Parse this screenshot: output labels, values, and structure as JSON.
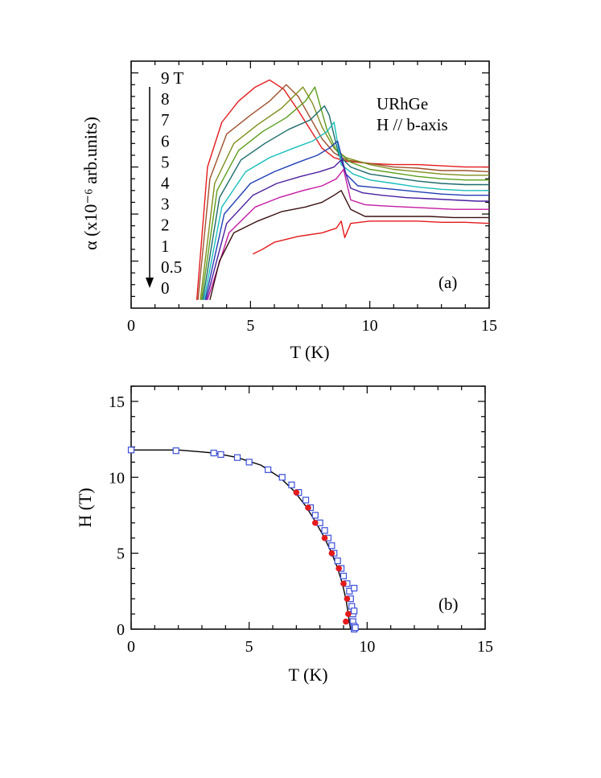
{
  "chart_data": [
    {
      "type": "line",
      "panel_label": "(a)",
      "xlabel": "T (K)",
      "ylabel": "α (x10⁻⁶ arb.units)",
      "xlim": [
        0,
        15
      ],
      "xticks": [
        "0",
        "5",
        "10",
        "15"
      ],
      "y_tick_labels_shown": false,
      "annotations": [
        "URhGe",
        "H // b-axis"
      ],
      "field_labels": [
        "9 T",
        "8",
        "7",
        "6",
        "5",
        "4",
        "3",
        "2",
        "1",
        "0.5",
        "0"
      ],
      "series": [
        {
          "field": 9,
          "color": "#e41a1c",
          "x": [
            2.75,
            3.2,
            3.8,
            4.5,
            5.2,
            5.8,
            6.4,
            7.0,
            7.5,
            8.0,
            8.5,
            9.0,
            10.0,
            11.0,
            12.0,
            13.0,
            14.0,
            15.0
          ],
          "y": [
            0.35,
            6.0,
            7.9,
            8.8,
            9.4,
            9.7,
            9.3,
            8.4,
            7.6,
            6.8,
            6.4,
            6.25,
            6.15,
            6.1,
            6.1,
            6.05,
            6.0,
            6.0
          ]
        },
        {
          "field": 8,
          "color": "#a0522d",
          "x": [
            2.8,
            3.3,
            4.0,
            5.0,
            5.8,
            6.5,
            7.0,
            7.5,
            8.0,
            8.5,
            9.0,
            10.0,
            11.0,
            12.0,
            13.0,
            14.0,
            15.0
          ],
          "y": [
            0.35,
            5.5,
            7.4,
            8.2,
            8.8,
            9.5,
            9.0,
            8.1,
            7.2,
            6.6,
            6.3,
            6.15,
            6.0,
            5.95,
            5.85,
            5.85,
            5.8
          ]
        },
        {
          "field": 7,
          "color": "#7f8c1a",
          "x": [
            2.9,
            3.5,
            4.3,
            5.3,
            6.3,
            7.2,
            7.6,
            8.0,
            8.5,
            9.0,
            10.0,
            11.0,
            12.0,
            13.0,
            14.0,
            15.0
          ],
          "y": [
            0.35,
            5.3,
            7.0,
            7.8,
            8.5,
            9.4,
            8.7,
            7.7,
            6.8,
            6.4,
            6.1,
            5.9,
            5.8,
            5.7,
            5.65,
            5.65
          ]
        },
        {
          "field": 6,
          "color": "#5a9e1a",
          "x": [
            2.95,
            3.6,
            4.5,
            5.5,
            6.5,
            7.3,
            7.7,
            8.2,
            8.6,
            9.2,
            10.0,
            11.0,
            12.0,
            13.0,
            14.0,
            15.0
          ],
          "y": [
            0.35,
            5.0,
            6.7,
            7.5,
            8.1,
            8.8,
            9.4,
            7.6,
            6.7,
            6.2,
            5.9,
            5.75,
            5.6,
            5.5,
            5.45,
            5.45
          ]
        },
        {
          "field": 5,
          "color": "#1b6b6b",
          "x": [
            3.0,
            3.7,
            4.6,
            5.6,
            6.6,
            7.5,
            8.1,
            8.3,
            8.7,
            9.2,
            10.0,
            11.0,
            12.0,
            13.0,
            14.0,
            15.0
          ],
          "y": [
            0.35,
            4.7,
            6.3,
            7.0,
            7.6,
            8.0,
            8.6,
            8.2,
            6.5,
            6.0,
            5.7,
            5.55,
            5.4,
            5.3,
            5.25,
            5.25
          ]
        },
        {
          "field": 4,
          "color": "#17bebb",
          "x": [
            3.05,
            3.8,
            4.8,
            5.8,
            6.8,
            7.6,
            8.2,
            8.5,
            8.8,
            9.3,
            10.0,
            11.0,
            12.0,
            13.0,
            14.0,
            15.0
          ],
          "y": [
            0.35,
            4.3,
            5.8,
            6.4,
            6.8,
            7.1,
            7.5,
            7.9,
            6.1,
            5.7,
            5.45,
            5.3,
            5.15,
            5.05,
            5.0,
            5.0
          ]
        },
        {
          "field": 3,
          "color": "#1f3fb4",
          "x": [
            3.1,
            3.9,
            5.0,
            6.0,
            7.0,
            7.8,
            8.3,
            8.65,
            9.0,
            9.5,
            10.0,
            11.0,
            12.0,
            13.0,
            14.0,
            15.0
          ],
          "y": [
            0.35,
            4.0,
            5.3,
            5.8,
            6.2,
            6.5,
            6.8,
            7.1,
            5.7,
            5.2,
            5.15,
            5.05,
            4.95,
            4.85,
            4.8,
            4.8
          ]
        },
        {
          "field": 2,
          "color": "#4b1fa0",
          "x": [
            3.15,
            4.0,
            5.1,
            6.1,
            7.1,
            7.9,
            8.5,
            8.8,
            9.2,
            9.7,
            10.5,
            11.5,
            12.5,
            13.5,
            14.5,
            15.0
          ],
          "y": [
            0.35,
            3.6,
            4.8,
            5.3,
            5.6,
            5.8,
            6.0,
            6.3,
            5.1,
            4.9,
            4.8,
            4.7,
            4.65,
            4.6,
            4.55,
            4.55
          ]
        },
        {
          "field": 1,
          "color": "#c41aa3",
          "x": [
            3.2,
            4.1,
            5.2,
            6.2,
            7.2,
            8.0,
            8.6,
            8.9,
            9.2,
            9.8,
            10.5,
            11.5,
            12.5,
            13.5,
            14.5,
            15.0
          ],
          "y": [
            0.35,
            3.2,
            4.3,
            4.7,
            5.0,
            5.2,
            5.5,
            5.9,
            4.6,
            4.4,
            4.35,
            4.3,
            4.25,
            4.2,
            4.2,
            4.2
          ]
        },
        {
          "field": 0.5,
          "color": "#3a1010",
          "x": [
            3.3,
            3.7,
            4.3,
            5.3,
            6.3,
            7.3,
            8.0,
            8.5,
            8.8,
            9.2,
            9.8,
            10.5,
            11.5,
            12.5,
            13.5,
            14.5,
            15.0
          ],
          "y": [
            0.35,
            2.0,
            3.2,
            3.7,
            4.1,
            4.3,
            4.5,
            4.8,
            5.0,
            4.2,
            3.9,
            3.9,
            3.9,
            3.9,
            3.85,
            3.85,
            3.85
          ]
        },
        {
          "field": 0,
          "color": "#e41a1c",
          "x": [
            5.1,
            5.5,
            6.0,
            7.0,
            8.0,
            8.6,
            8.8,
            8.95,
            9.2,
            10.0,
            11.0,
            12.0,
            13.0,
            14.0,
            15.0
          ],
          "y": [
            2.3,
            2.5,
            2.8,
            3.05,
            3.2,
            3.4,
            3.7,
            3.0,
            3.6,
            3.7,
            3.7,
            3.7,
            3.65,
            3.65,
            3.6
          ]
        }
      ]
    },
    {
      "type": "scatter",
      "panel_label": "(b)",
      "xlabel": "T (K)",
      "ylabel": "H (T)",
      "xlim": [
        0,
        15
      ],
      "ylim": [
        0,
        16
      ],
      "xticks": [
        "0",
        "5",
        "10",
        "15"
      ],
      "yticks": [
        "0",
        "5",
        "10",
        "15"
      ],
      "series": [
        {
          "marker": "open-square",
          "color": "#3b4fd8",
          "x": [
            0.0,
            1.9,
            3.5,
            3.8,
            4.5,
            5.0,
            5.8,
            6.4,
            6.8,
            7.1,
            7.4,
            7.6,
            7.8,
            8.0,
            8.2,
            8.35,
            8.5,
            8.6,
            8.75,
            8.9,
            9.0,
            9.15,
            9.25,
            9.3,
            9.35,
            9.4,
            9.4,
            9.45,
            9.45,
            9.45,
            9.45,
            9.5
          ],
          "y": [
            11.8,
            11.75,
            11.6,
            11.5,
            11.3,
            11.0,
            10.5,
            10.0,
            9.5,
            9.0,
            8.5,
            8.0,
            7.5,
            7.0,
            6.5,
            6.0,
            5.5,
            5.0,
            4.5,
            4.0,
            3.5,
            3.0,
            2.5,
            2.0,
            1.5,
            1.0,
            0.5,
            0.0,
            2.7,
            1.2,
            0.2,
            0.1
          ]
        },
        {
          "marker": "filled-circle",
          "color": "#e41a1c",
          "x": [
            7.0,
            7.5,
            7.8,
            8.2,
            8.5,
            8.8,
            9.0,
            9.15,
            9.2,
            9.1
          ],
          "y": [
            9.0,
            8.0,
            7.0,
            6.0,
            5.0,
            4.0,
            3.0,
            2.0,
            1.0,
            0.5
          ]
        },
        {
          "marker": "line",
          "color": "#000000",
          "x": [
            0.0,
            2.0,
            3.5,
            4.5,
            5.5,
            6.3,
            6.9,
            7.4,
            7.8,
            8.2,
            8.5,
            8.75,
            8.95,
            9.1,
            9.2,
            9.25,
            9.3
          ],
          "y": [
            11.8,
            11.8,
            11.6,
            11.3,
            10.8,
            10.0,
            9.1,
            8.1,
            7.1,
            6.0,
            5.0,
            4.0,
            3.0,
            2.0,
            1.0,
            0.4,
            0.0
          ]
        }
      ]
    }
  ]
}
